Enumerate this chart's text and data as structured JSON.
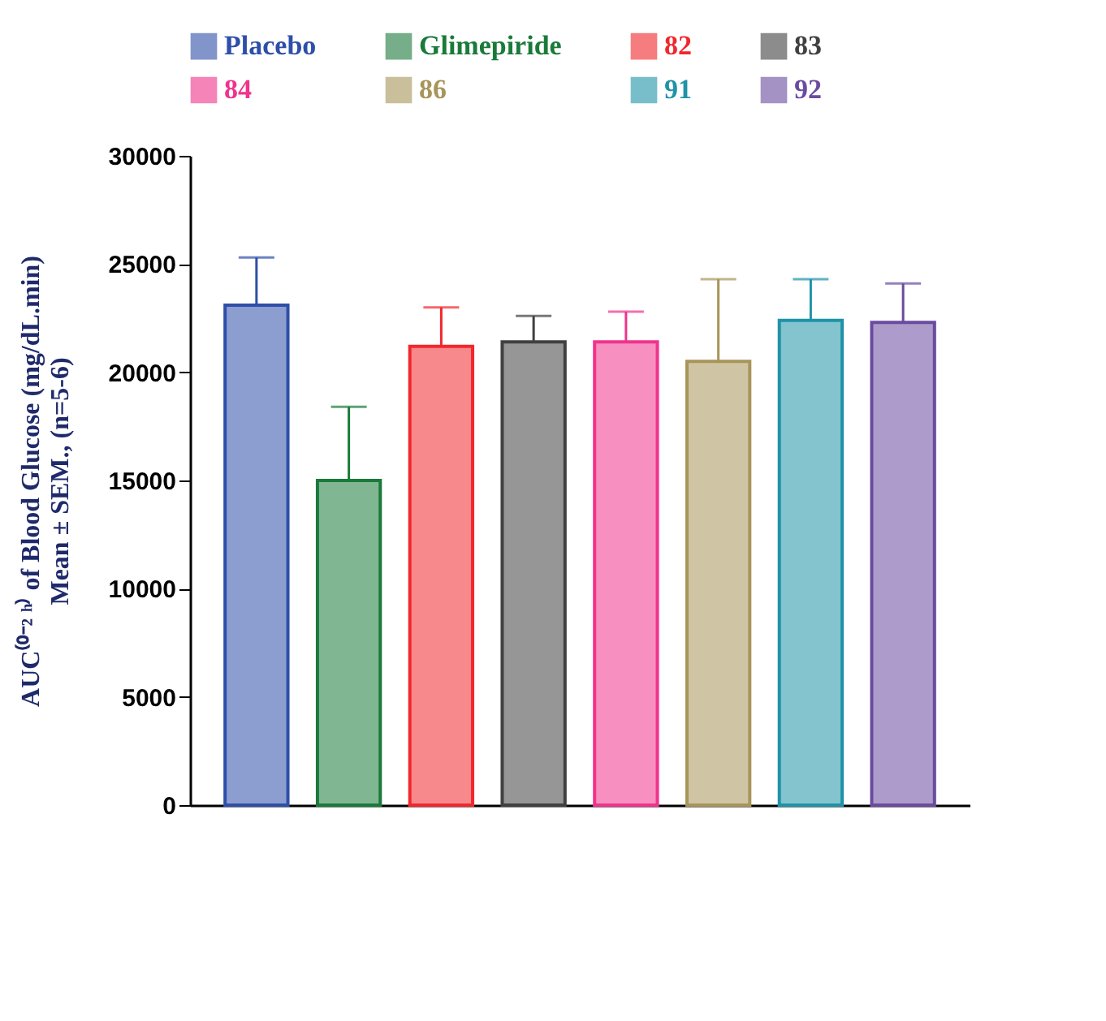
{
  "chart_data": {
    "type": "bar",
    "ylabel": "AUC⁽⁰⁻² ʰ⁾ of Blood Glucose (mg/dL.min)\nMean ± SEM., (n=5-6)",
    "categories": [
      null
    ],
    "series": [
      {
        "name": "Placebo",
        "color": "#2e4fa8",
        "values": [
          23100
        ],
        "errors": [
          2200
        ]
      },
      {
        "name": "Glimepiride",
        "color": "#1a7a3a",
        "values": [
          15000
        ],
        "errors": [
          3400
        ]
      },
      {
        "name": "82",
        "color": "#f0282d",
        "values": [
          21200
        ],
        "errors": [
          1800
        ]
      },
      {
        "name": "83",
        "color": "#404040",
        "values": [
          21400
        ],
        "errors": [
          1200
        ]
      },
      {
        "name": "84",
        "color": "#f0338c",
        "values": [
          21400
        ],
        "errors": [
          1400
        ]
      },
      {
        "name": "86",
        "color": "#a8955a",
        "values": [
          20500
        ],
        "errors": [
          3800
        ]
      },
      {
        "name": "91",
        "color": "#1f93a8",
        "values": [
          22400
        ],
        "errors": [
          1900
        ]
      },
      {
        "name": "92",
        "color": "#6a4ba0",
        "values": [
          22300
        ],
        "errors": [
          1800
        ]
      }
    ],
    "ylim": [
      0,
      30000
    ],
    "yticks": [
      0,
      5000,
      10000,
      15000,
      20000,
      25000,
      30000
    ],
    "legend": "top",
    "tick_labels": "y",
    "grid": false
  }
}
